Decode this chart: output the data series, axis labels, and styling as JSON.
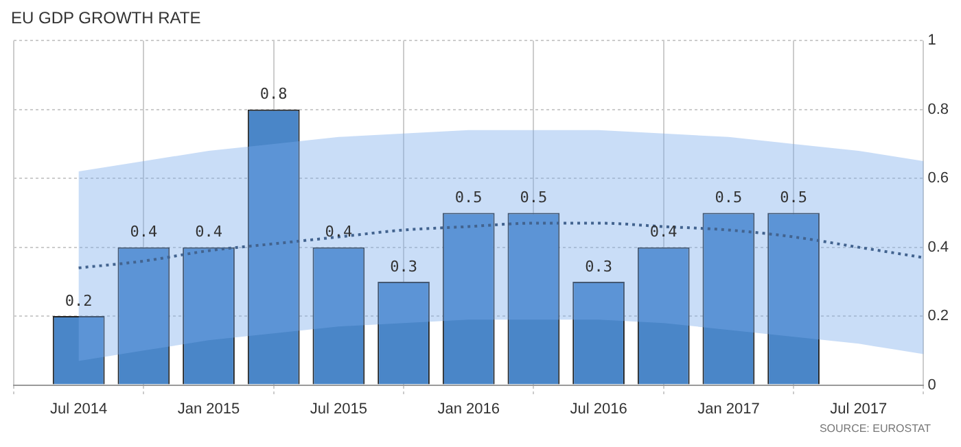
{
  "chart_data": {
    "type": "bar",
    "title": "EU GDP GROWTH RATE",
    "x": [
      "2014-07",
      "2014-10",
      "2015-01",
      "2015-04",
      "2015-07",
      "2015-10",
      "2016-01",
      "2016-04",
      "2016-07",
      "2016-10",
      "2017-01",
      "2017-04"
    ],
    "series": [
      {
        "color": "#4a86c8",
        "values": [
          0.2,
          0.4,
          0.4,
          0.8,
          0.4,
          0.3,
          0.5,
          0.5,
          0.3,
          0.4,
          0.5,
          0.5
        ],
        "value_labels": [
          "0.2",
          "0.4",
          "0.4",
          "0.8",
          "0.4",
          "0.3",
          "0.5",
          "0.5",
          "0.3",
          "0.4",
          "0.5",
          "0.5"
        ]
      },
      {
        "type": "line",
        "color": "#1f3552",
        "line_style": "dotted",
        "marker": "none",
        "x": [
          "2014-07",
          "2014-10",
          "2015-01",
          "2015-04",
          "2015-07",
          "2015-10",
          "2016-01",
          "2016-04",
          "2016-07",
          "2016-10",
          "2017-01",
          "2017-04",
          "2017-07",
          "2017-10"
        ],
        "values": [
          0.34,
          0.36,
          0.39,
          0.41,
          0.43,
          0.45,
          0.46,
          0.47,
          0.47,
          0.46,
          0.45,
          0.43,
          0.4,
          0.37
        ],
        "upper": [
          0.62,
          0.65,
          0.68,
          0.7,
          0.72,
          0.73,
          0.74,
          0.74,
          0.74,
          0.73,
          0.72,
          0.7,
          0.68,
          0.65
        ],
        "lower": [
          0.07,
          0.1,
          0.13,
          0.15,
          0.17,
          0.18,
          0.19,
          0.19,
          0.19,
          0.18,
          0.16,
          0.14,
          0.12,
          0.09
        ]
      }
    ],
    "xlim": [
      "2014-04",
      "2017-10"
    ],
    "xticks": [
      {
        "value": "2014-07",
        "label": "Jul 2014"
      },
      {
        "value": "2015-01",
        "label": "Jan 2015"
      },
      {
        "value": "2015-07",
        "label": "Jul 2015"
      },
      {
        "value": "2016-01",
        "label": "Jan 2016"
      },
      {
        "value": "2016-07",
        "label": "Jul 2016"
      },
      {
        "value": "2017-01",
        "label": "Jan 2017"
      },
      {
        "value": "2017-07",
        "label": "Jul 2017"
      }
    ],
    "ylim": [
      0,
      1
    ],
    "yticks": [
      0,
      0.2,
      0.4,
      0.6,
      0.8,
      1
    ],
    "grid": true,
    "legend": false,
    "annotations": [
      "SOURCE: EUROSTAT"
    ]
  }
}
